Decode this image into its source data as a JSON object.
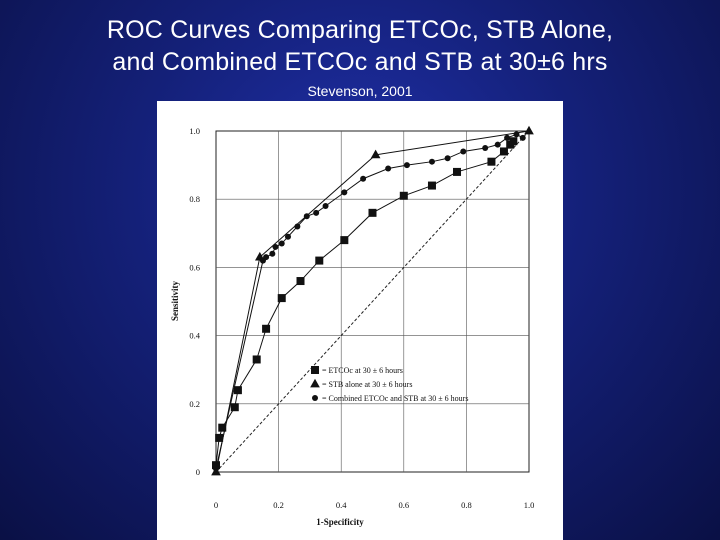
{
  "slide": {
    "title_line1": "ROC Curves Comparing ETCOc, STB Alone,",
    "title_line2": "and Combined ETCOc and STB at 30±6 hrs",
    "subtitle": "Stevenson, 2001"
  },
  "chart_data": {
    "type": "line",
    "xlabel": "1-Specificity",
    "ylabel": "Sensitivity",
    "xlim": [
      0,
      1
    ],
    "ylim": [
      0,
      1
    ],
    "x_ticks": [
      "0",
      "0.2",
      "0.4",
      "0.6",
      "0.8",
      "1.0"
    ],
    "y_ticks": [
      "0",
      "0.2",
      "0.4",
      "0.6",
      "0.8",
      "1.0"
    ],
    "grid": true,
    "reference_line": "diagonal-dashed",
    "legend_position": "bottom-center",
    "series": [
      {
        "name": "= ETCOc at 30 ± 6 hours",
        "marker": "square",
        "x": [
          0.0,
          0.01,
          0.02,
          0.06,
          0.07,
          0.13,
          0.16,
          0.21,
          0.27,
          0.33,
          0.41,
          0.5,
          0.6,
          0.69,
          0.77,
          0.88,
          0.92,
          0.94,
          0.95
        ],
        "y": [
          0.02,
          0.1,
          0.13,
          0.19,
          0.24,
          0.33,
          0.42,
          0.51,
          0.56,
          0.62,
          0.68,
          0.76,
          0.81,
          0.84,
          0.88,
          0.91,
          0.94,
          0.96,
          0.97
        ]
      },
      {
        "name": "= STB alone at 30 ± 6 hours",
        "marker": "triangle",
        "x": [
          0.0,
          0.14,
          0.51,
          1.0
        ],
        "y": [
          0.0,
          0.63,
          0.93,
          1.0
        ]
      },
      {
        "name": "= Combined ETCOc and STB at 30 ± 6 hours",
        "marker": "circle",
        "x": [
          0.0,
          0.15,
          0.16,
          0.18,
          0.19,
          0.21,
          0.23,
          0.26,
          0.29,
          0.32,
          0.35,
          0.41,
          0.47,
          0.55,
          0.61,
          0.69,
          0.74,
          0.79,
          0.86,
          0.9,
          0.93,
          0.96,
          0.98
        ],
        "y": [
          0.01,
          0.62,
          0.63,
          0.64,
          0.66,
          0.67,
          0.69,
          0.72,
          0.75,
          0.76,
          0.78,
          0.82,
          0.86,
          0.89,
          0.9,
          0.91,
          0.92,
          0.94,
          0.95,
          0.96,
          0.98,
          0.99,
          0.98
        ]
      }
    ]
  }
}
